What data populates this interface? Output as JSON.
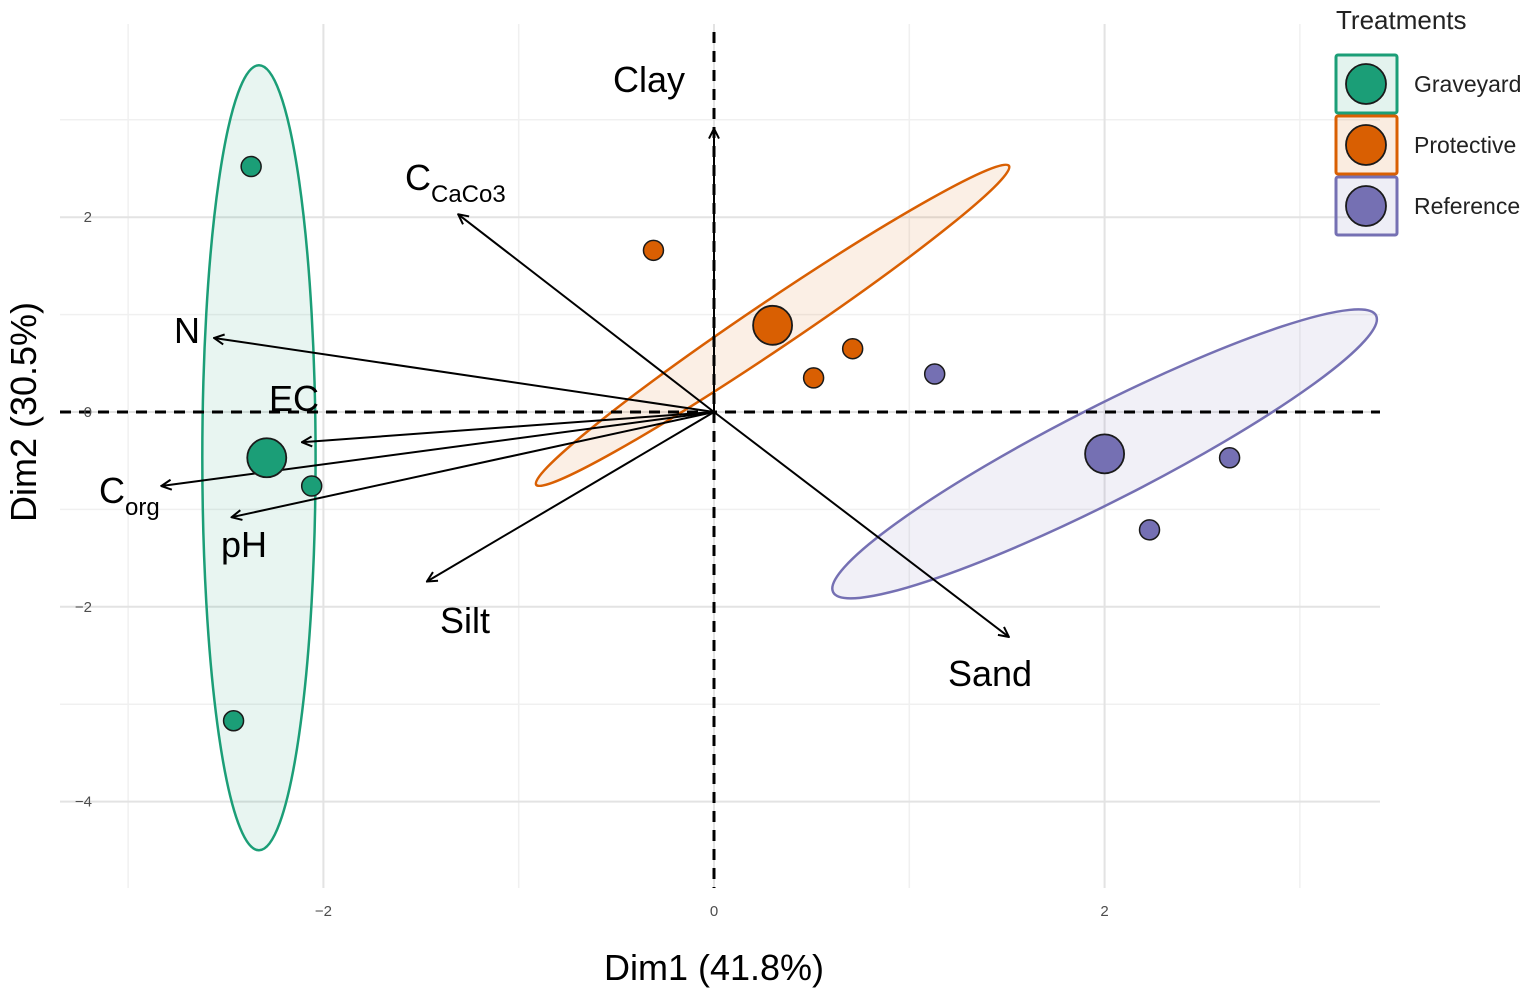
{
  "chart_data": {
    "type": "scatter",
    "subtype": "pca-biplot",
    "xlabel": "Dim1 (41.8%)",
    "ylabel": "Dim2 (30.5%)",
    "xlim": [
      -3.0,
      3.4
    ],
    "ylim": [
      -4.9,
      4.0
    ],
    "x_ticks": [
      -2,
      0,
      2
    ],
    "x_tick_labels": [
      "−2",
      "0",
      "2"
    ],
    "y_ticks": [
      2,
      0,
      -2,
      -4
    ],
    "y_tick_labels": [
      "2",
      "0",
      "−2",
      "−4"
    ],
    "grid": true,
    "legend": {
      "title": "Treatments",
      "position": "top-right",
      "entries": [
        "Graveyard",
        "Protective",
        "Reference"
      ]
    },
    "colors": {
      "Graveyard": "#1b9e77",
      "Protective": "#d95f02",
      "Reference": "#7570b3"
    },
    "series": [
      {
        "name": "Graveyard",
        "points": [
          {
            "x": -2.37,
            "y": 2.52
          },
          {
            "x": -2.06,
            "y": -0.76
          },
          {
            "x": -2.46,
            "y": -3.17
          }
        ],
        "centroid": {
          "x": -2.29,
          "y": -0.47
        },
        "ellipse": {
          "cx": -2.33,
          "cy": -0.47,
          "rx": 0.29,
          "ry": 4.03,
          "angle": 0
        }
      },
      {
        "name": "Protective",
        "points": [
          {
            "x": -0.31,
            "y": 1.66
          },
          {
            "x": 0.71,
            "y": 0.65
          },
          {
            "x": 0.51,
            "y": 0.35
          }
        ],
        "centroid": {
          "x": 0.3,
          "y": 0.89
        },
        "ellipse": {
          "cx": 0.3,
          "cy": 0.89,
          "rx": 1.46,
          "ry": 0.24,
          "angle": 34
        }
      },
      {
        "name": "Reference",
        "points": [
          {
            "x": 1.13,
            "y": 0.39
          },
          {
            "x": 2.64,
            "y": -0.47
          },
          {
            "x": 2.23,
            "y": -1.21
          }
        ],
        "centroid": {
          "x": 2.0,
          "y": -0.43
        },
        "ellipse": {
          "cx": 2.0,
          "cy": -0.43,
          "rx": 1.56,
          "ry": 0.48,
          "angle": 27
        }
      }
    ],
    "variables": [
      {
        "name": "Clay",
        "main": "Clay",
        "sub": "",
        "x": 0.0,
        "y": 2.91
      },
      {
        "name": "CCaCo3",
        "main": "C",
        "sub": "CaCo3",
        "x": -1.31,
        "y": 2.03
      },
      {
        "name": "N",
        "main": "N",
        "sub": "",
        "x": -2.56,
        "y": 0.76
      },
      {
        "name": "EC",
        "main": "EC",
        "sub": "",
        "x": -2.11,
        "y": -0.31
      },
      {
        "name": "Corg",
        "main": "C",
        "sub": "org",
        "x": -2.83,
        "y": -0.76
      },
      {
        "name": "pH",
        "main": "pH",
        "sub": "",
        "x": -2.47,
        "y": -1.08
      },
      {
        "name": "Silt",
        "main": "Silt",
        "sub": "",
        "x": -1.47,
        "y": -1.74
      },
      {
        "name": "Sand",
        "main": "Sand",
        "sub": "",
        "x": 1.51,
        "y": -2.31
      }
    ]
  }
}
